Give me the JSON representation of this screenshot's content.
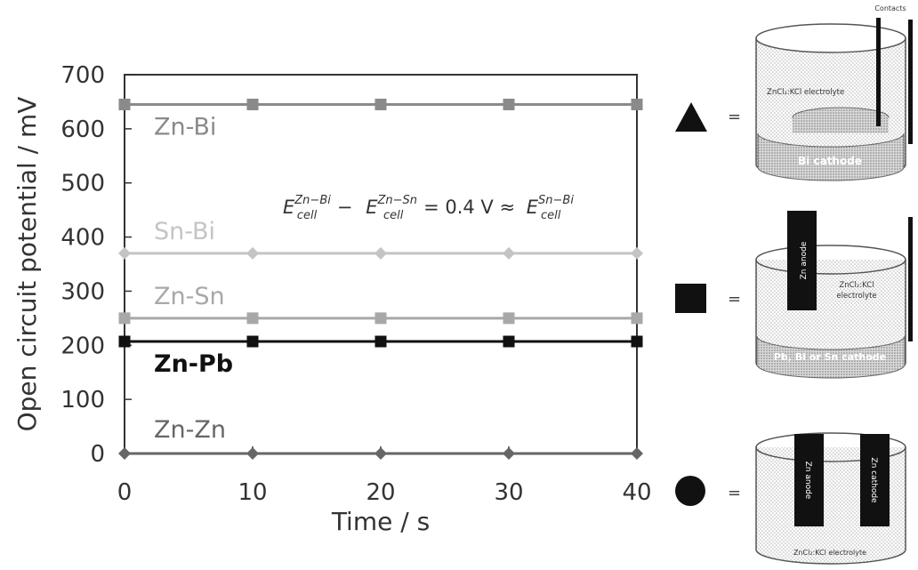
{
  "chart_data": {
    "type": "line",
    "xlabel": "Time / s",
    "ylabel": "Open circuit potential / mV",
    "xlim": [
      0,
      40
    ],
    "ylim": [
      0,
      700
    ],
    "xticks": [
      "0",
      "10",
      "20",
      "30",
      "40"
    ],
    "yticks": [
      "0",
      "100",
      "200",
      "300",
      "400",
      "500",
      "600",
      "700"
    ],
    "x": [
      0,
      10,
      20,
      30,
      40
    ],
    "grid": false,
    "series": [
      {
        "name": "Zn-Bi",
        "values": [
          645,
          645,
          645,
          645,
          645
        ],
        "color": "#8a8a8a",
        "marker": "square",
        "label_bold": false
      },
      {
        "name": "Sn-Bi",
        "values": [
          370,
          370,
          370,
          370,
          370
        ],
        "color": "#c4c4c4",
        "marker": "diamond",
        "label_bold": false
      },
      {
        "name": "Zn-Sn",
        "values": [
          250,
          250,
          250,
          250,
          250
        ],
        "color": "#a8a8a8",
        "marker": "square",
        "label_bold": false
      },
      {
        "name": "Zn-Pb",
        "values": [
          207,
          207,
          207,
          207,
          207
        ],
        "color": "#111111",
        "marker": "square",
        "label_bold": true
      },
      {
        "name": "Zn-Zn",
        "values": [
          0,
          0,
          0,
          0,
          0
        ],
        "color": "#666666",
        "marker": "diamond",
        "label_bold": false
      }
    ],
    "annotation": {
      "text": "E_cell^(Zn−Bi) − E_cell^(Zn−Sn) = 0.4 V ≈ E_cell^(Sn−Bi)",
      "parts": {
        "e": "E",
        "sub": "cell",
        "sup1": "Zn−Bi",
        "minus": "−",
        "sup2": "Zn−Sn",
        "mid": "= 0.4 V ≈",
        "sup3": "Sn−Bi"
      }
    }
  },
  "legend": {
    "equals": "=",
    "items": [
      {
        "marker": "triangle",
        "meaning": "setup-1"
      },
      {
        "marker": "square",
        "meaning": "setup-2"
      },
      {
        "marker": "circle",
        "meaning": "setup-3"
      }
    ]
  },
  "setups": {
    "s1": {
      "contacts": "Contacts",
      "electrolyte": "ZnCl₂:KCl electrolyte",
      "cathode": "Bi cathode"
    },
    "s2": {
      "anode": "Zn anode",
      "electrolyte_line1": "ZnCl₂:KCl",
      "electrolyte_line2": "electrolyte",
      "cathode": "Pb, Bi or Sn cathode"
    },
    "s3": {
      "anode": "Zn anode",
      "cathode": "Zn cathode",
      "electrolyte": "ZnCl₂:KCl electrolyte"
    }
  }
}
